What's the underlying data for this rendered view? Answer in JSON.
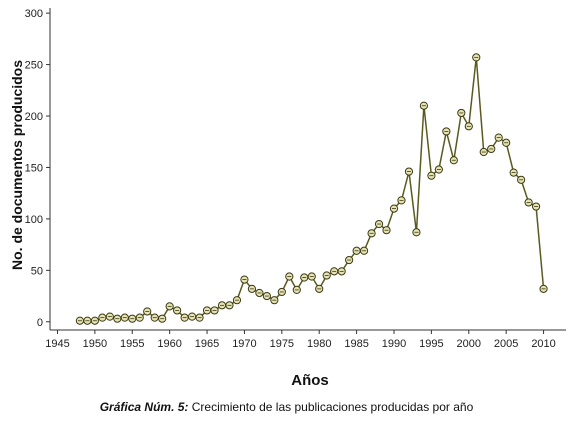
{
  "chart_data": {
    "type": "line",
    "xlabel": "Años",
    "ylabel": "No. de documentos producidos",
    "xlim": [
      1944,
      2013
    ],
    "ylim": [
      -8,
      305
    ],
    "x_ticks": [
      1945,
      1950,
      1955,
      1960,
      1965,
      1970,
      1975,
      1980,
      1985,
      1990,
      1995,
      2000,
      2005,
      2010
    ],
    "y_ticks": [
      0,
      50,
      100,
      150,
      200,
      250,
      300
    ],
    "grid": false,
    "marker": "circle",
    "line_color": "#5a5a20",
    "marker_fill": "#e6e2b4",
    "series": [
      {
        "x": [
          1948,
          1949,
          1950,
          1951,
          1952,
          1953,
          1954,
          1955,
          1956,
          1957,
          1958,
          1959,
          1960,
          1961,
          1962,
          1963,
          1964,
          1965,
          1966,
          1967,
          1968,
          1969,
          1970,
          1971,
          1972,
          1973,
          1974,
          1975,
          1976,
          1977,
          1978,
          1979,
          1980,
          1981,
          1982,
          1983,
          1984,
          1985,
          1986,
          1987,
          1988,
          1989,
          1990,
          1991,
          1992,
          1993,
          1994,
          1995,
          1996,
          1997,
          1998,
          1999,
          2000,
          2001,
          2002,
          2003,
          2004,
          2005,
          2006,
          2007,
          2008,
          2009,
          2010
        ],
        "y": [
          1,
          1,
          1,
          4,
          5,
          3,
          4,
          3,
          4,
          10,
          4,
          3,
          15,
          11,
          4,
          5,
          4,
          11,
          11,
          16,
          16,
          21,
          41,
          32,
          28,
          25,
          21,
          29,
          44,
          31,
          43,
          44,
          32,
          45,
          49,
          49,
          60,
          69,
          69,
          86,
          95,
          89,
          110,
          118,
          146,
          87,
          210,
          142,
          148,
          185,
          157,
          203,
          190,
          257,
          165,
          168,
          179,
          174,
          145,
          138,
          116,
          112,
          32
        ]
      }
    ]
  },
  "caption": {
    "lead": "Gráfica Núm. 5:",
    "text": " Crecimiento de las publicaciones producidas por año"
  }
}
